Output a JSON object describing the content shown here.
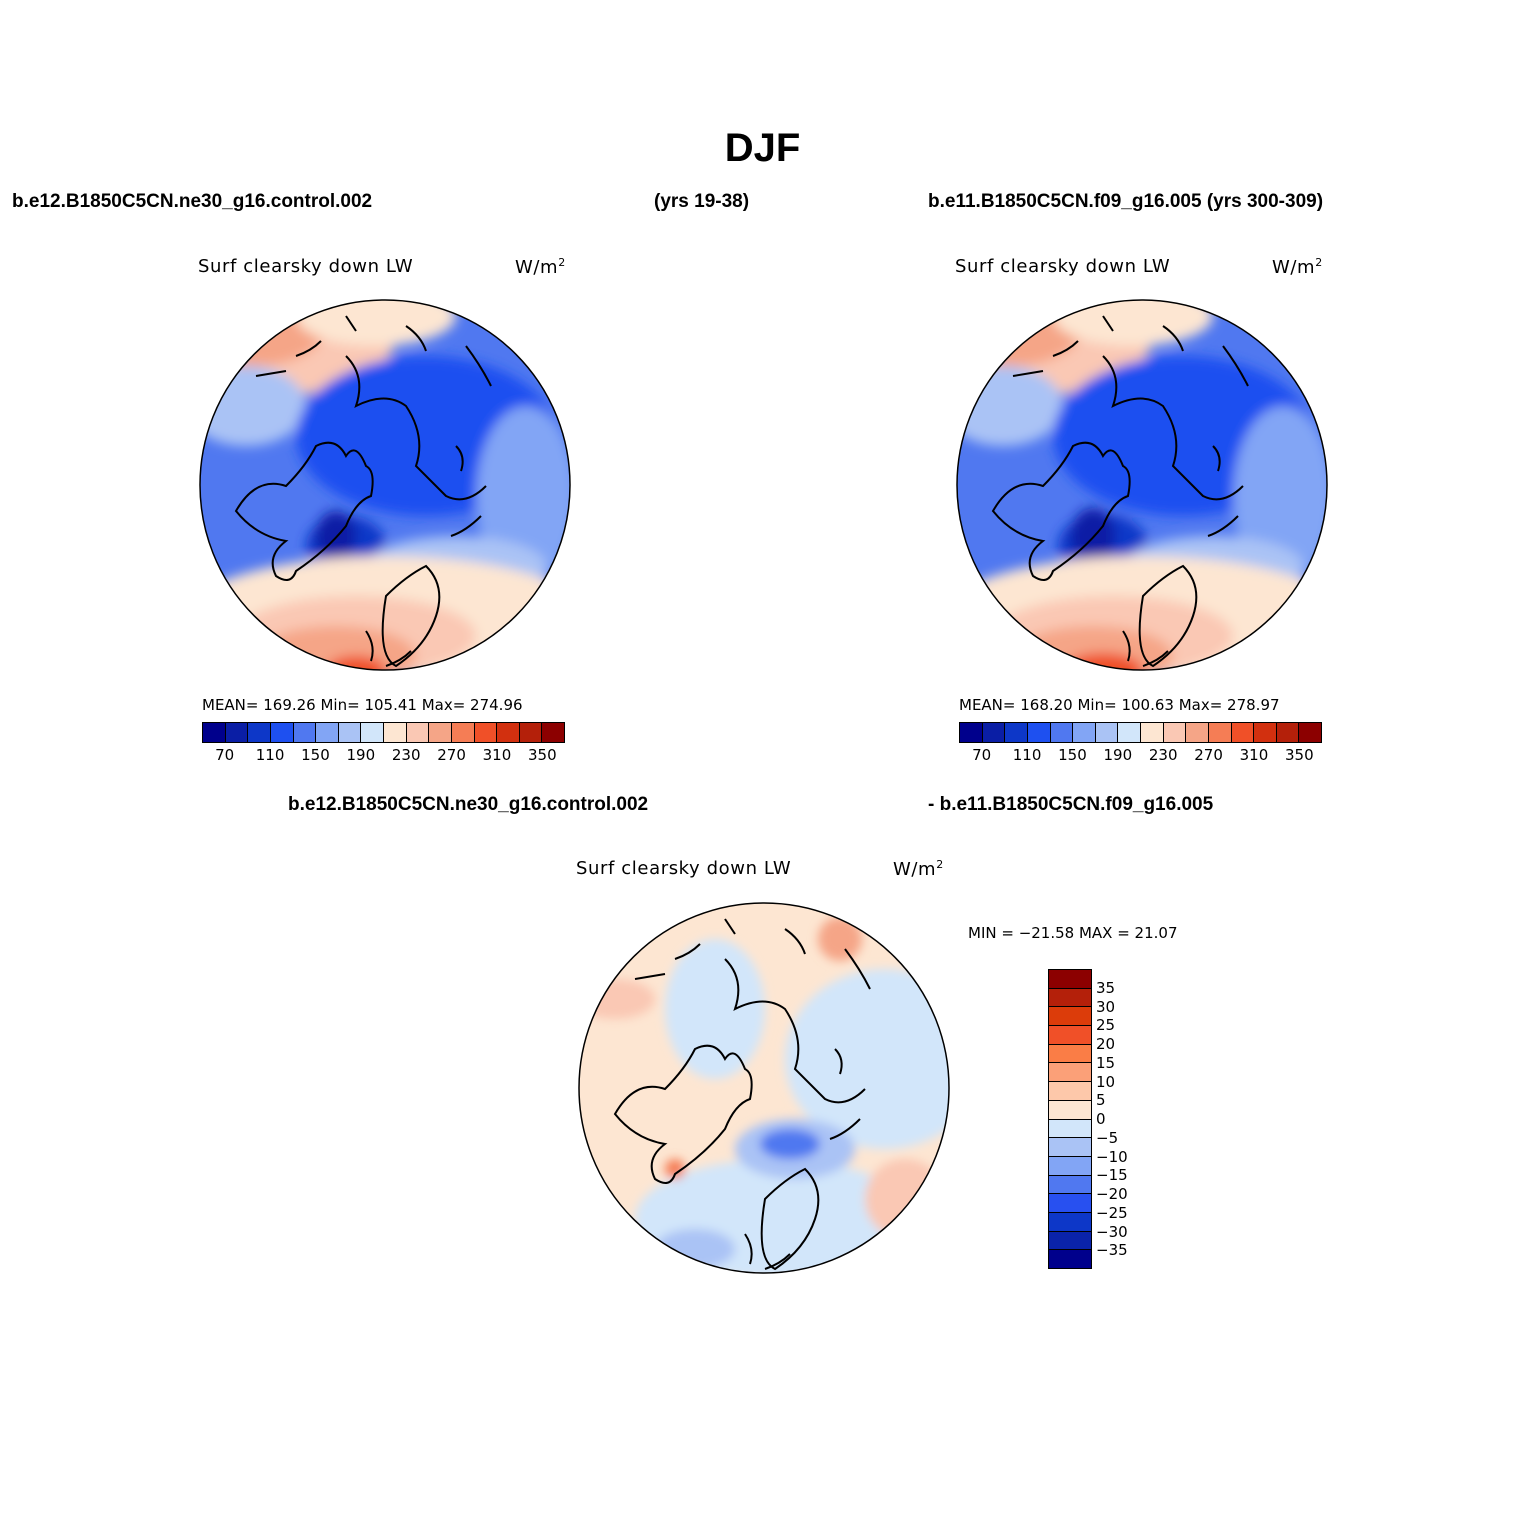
{
  "figure": {
    "title": "DJF",
    "case1": "b.e12.B1850C5CN.ne30_g16.control.002",
    "case1_yrs": "(yrs 19-38)",
    "case2": "b.e11.B1850C5CN.f09_g16.005 (yrs 300-309)",
    "diff_case1": "b.e12.B1850C5CN.ne30_g16.control.002",
    "diff_case2": "- b.e11.B1850C5CN.f09_g16.005"
  },
  "panel1": {
    "variable": "Surf clearsky down LW",
    "units": "W/m",
    "units_sup": "2",
    "stats": "MEAN= 169.26   Min= 105.41   Max= 274.96",
    "mean": 169.26,
    "min": 105.41,
    "max": 274.96
  },
  "panel2": {
    "variable": "Surf clearsky down LW",
    "units": "W/m",
    "units_sup": "2",
    "stats": "MEAN= 168.20   Min= 100.63   Max= 278.97",
    "mean": 168.2,
    "min": 100.63,
    "max": 278.97
  },
  "panel3": {
    "variable": "Surf clearsky down LW",
    "units": "W/m",
    "units_sup": "2",
    "stats": "MIN = −21.58 MAX =  21.07",
    "min": -21.58,
    "max": 21.07
  },
  "colorbar_abs": {
    "colors": [
      "#00008c",
      "#0a1ea5",
      "#0d37c8",
      "#1e50f0",
      "#5078f0",
      "#82a5f5",
      "#aac3f5",
      "#d2e6fa",
      "#fde6d2",
      "#fac8b4",
      "#f5a587",
      "#f57d55",
      "#f05028",
      "#d2300f",
      "#b4200a",
      "#8c0000"
    ],
    "tick_labels": [
      "70",
      "110",
      "150",
      "190",
      "230",
      "270",
      "310",
      "350"
    ]
  },
  "colorbar_diff": {
    "colors": [
      "#8c0000",
      "#b4200a",
      "#dc3c0a",
      "#f05028",
      "#fa7d46",
      "#fba078",
      "#fdc8aa",
      "#fde6d2",
      "#d2e6fa",
      "#aac3f5",
      "#82a5f5",
      "#5078f0",
      "#2850f0",
      "#0d37c8",
      "#0a23aa",
      "#00008c"
    ],
    "tick_labels": [
      "35",
      "30",
      "25",
      "20",
      "15",
      "10",
      "5",
      "0",
      "−5",
      "−10",
      "−15",
      "−20",
      "−25",
      "−30",
      "−35"
    ]
  }
}
